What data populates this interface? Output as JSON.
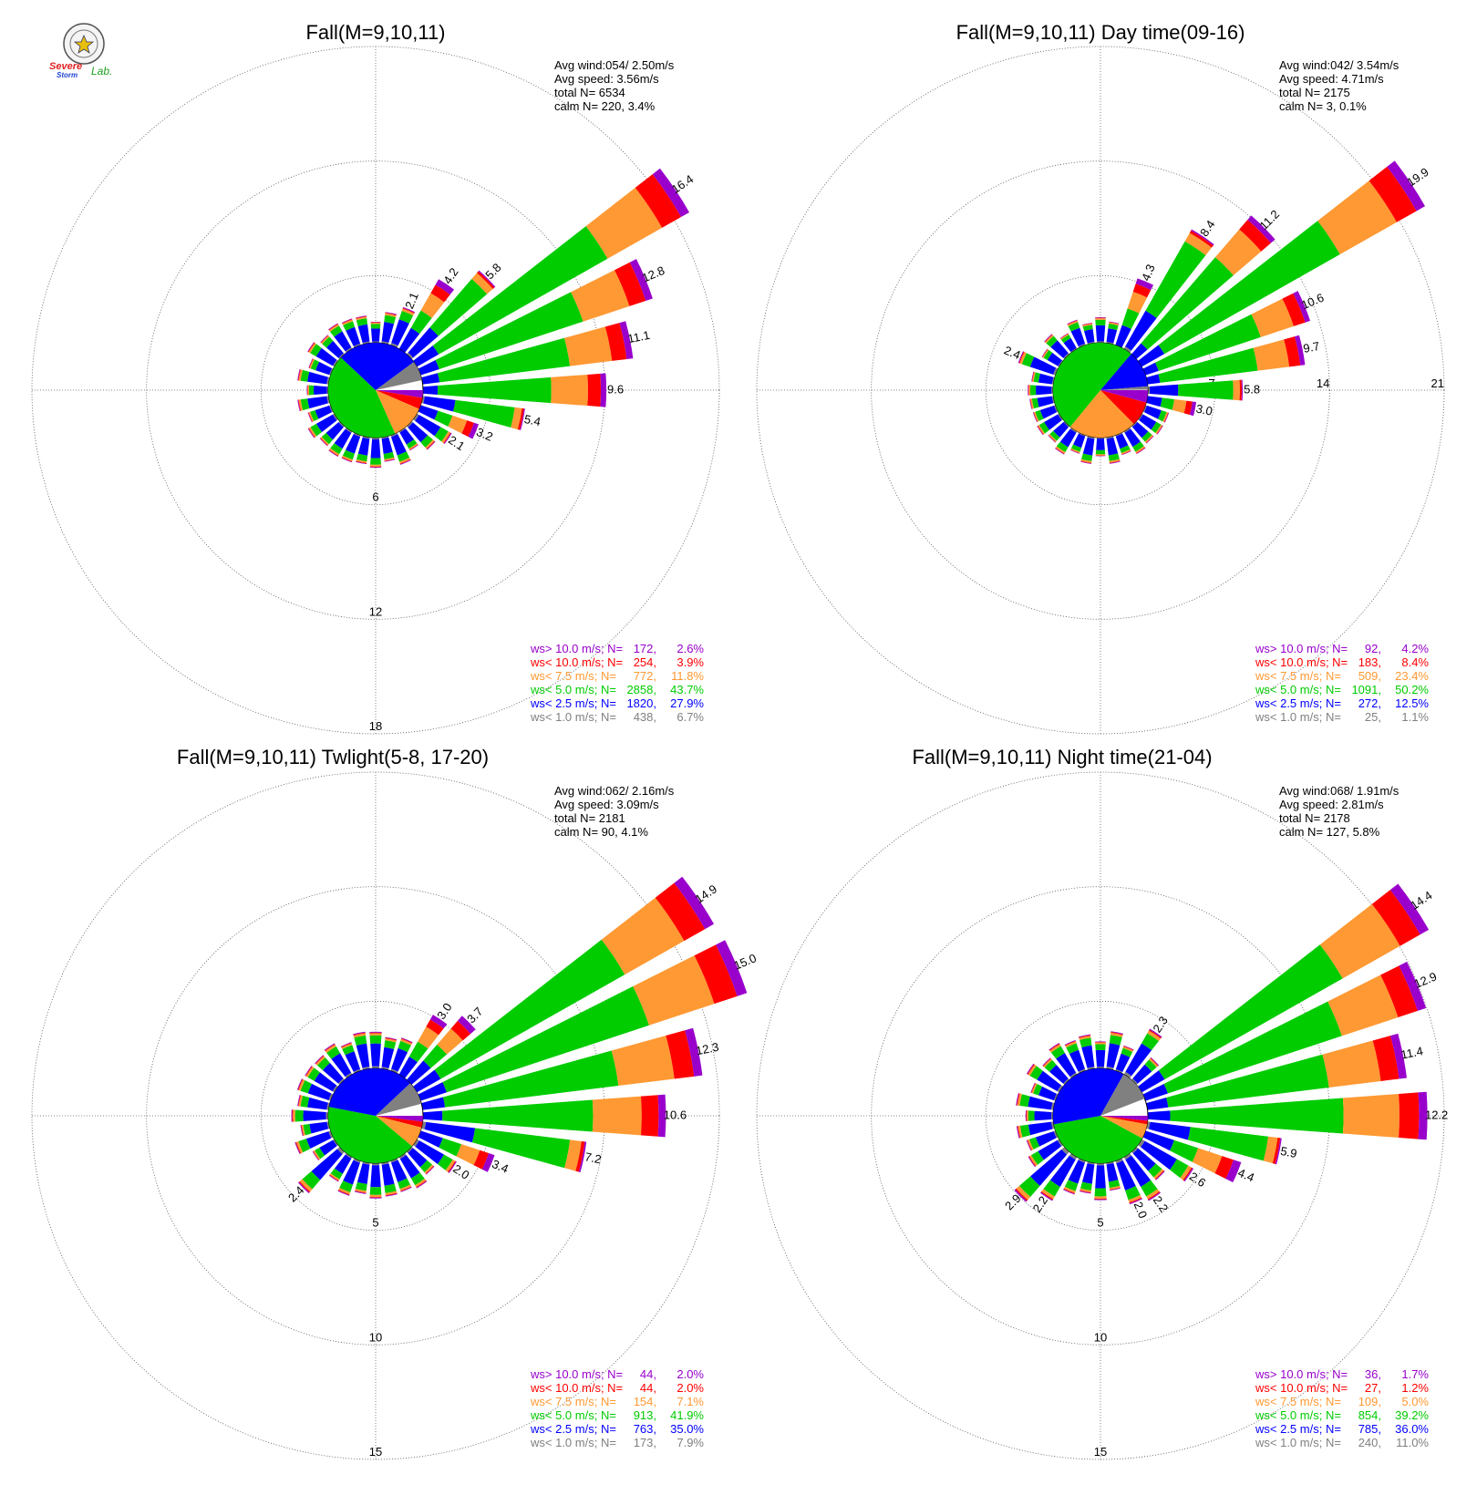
{
  "logo": {
    "text_top": "Severe",
    "text_bottom": "Storm",
    "text_lab": "Lab."
  },
  "colors": {
    "gt10": "#9900cc",
    "lt10": "#ff0000",
    "lt75": "#ff9933",
    "lt5": "#00cc00",
    "lt25": "#0000ff",
    "lt1": "#808080"
  },
  "chart_data": [
    {
      "type": "wind-rose",
      "title": "Fall(M=9,10,11)",
      "stats": [
        "Avg wind:054/ 2.50m/s",
        "Avg speed: 3.56m/s",
        "total N=      6534",
        "calm N=    220,   3.4%"
      ],
      "rings": [
        6,
        12,
        18
      ],
      "ring_labels_side": "south",
      "max_radius_value": 18,
      "labeled_petals": [
        {
          "dir": 22.5,
          "value": 2.1
        },
        {
          "dir": 33.75,
          "value": 4.2
        },
        {
          "dir": 45,
          "value": 5.8
        },
        {
          "dir": 56.25,
          "value": 16.4
        },
        {
          "dir": 67.5,
          "value": 12.8
        },
        {
          "dir": 78.75,
          "value": 11.1
        },
        {
          "dir": 90,
          "value": 9.6
        },
        {
          "dir": 101.25,
          "value": 5.4
        },
        {
          "dir": 112.5,
          "value": 3.2
        },
        {
          "dir": 123.75,
          "value": 2.1
        }
      ],
      "inner_pie": [
        2.6,
        3.9,
        11.8,
        43.7,
        27.9,
        6.7
      ],
      "legend": [
        {
          "label": "ws> 10.0 m/s; N=",
          "n": "172",
          "pct": "2.6%",
          "color": "gt10"
        },
        {
          "label": "ws< 10.0 m/s; N=",
          "n": "254",
          "pct": "3.9%",
          "color": "lt10"
        },
        {
          "label": "ws<  7.5 m/s; N=",
          "n": "772",
          "pct": "11.8%",
          "color": "lt75"
        },
        {
          "label": "ws<  5.0 m/s; N=",
          "n": "2858",
          "pct": "43.7%",
          "color": "lt5"
        },
        {
          "label": "ws<  2.5 m/s; N=",
          "n": "1820",
          "pct": "27.9%",
          "color": "lt25"
        },
        {
          "label": "ws<  1.0 m/s; N=",
          "n": "438",
          "pct": "6.7%",
          "color": "lt1"
        }
      ]
    },
    {
      "type": "wind-rose",
      "title": "Fall(M=9,10,11) Day time(09-16)",
      "stats": [
        "Avg wind:042/ 3.54m/s",
        "Avg speed: 4.71m/s",
        "total N=      2175",
        "calm N=      3,   0.1%"
      ],
      "rings": [
        7,
        14,
        21
      ],
      "ring_labels_side": "east",
      "max_radius_value": 21,
      "labeled_petals": [
        {
          "dir": 292.5,
          "value": 2.4
        },
        {
          "dir": 22.5,
          "value": 4.3
        },
        {
          "dir": 33.75,
          "value": 8.4
        },
        {
          "dir": 45,
          "value": 11.2
        },
        {
          "dir": 56.25,
          "value": 19.9
        },
        {
          "dir": 67.5,
          "value": 10.6
        },
        {
          "dir": 78.75,
          "value": 9.7
        },
        {
          "dir": 90,
          "value": 5.8
        },
        {
          "dir": 101.25,
          "value": 3.0
        }
      ],
      "inner_pie": [
        4.2,
        8.4,
        23.4,
        50.2,
        12.5,
        1.1
      ],
      "legend": [
        {
          "label": "ws> 10.0 m/s; N=",
          "n": "92",
          "pct": "4.2%",
          "color": "gt10"
        },
        {
          "label": "ws< 10.0 m/s; N=",
          "n": "183",
          "pct": "8.4%",
          "color": "lt10"
        },
        {
          "label": "ws<  7.5 m/s; N=",
          "n": "509",
          "pct": "23.4%",
          "color": "lt75"
        },
        {
          "label": "ws<  5.0 m/s; N=",
          "n": "1091",
          "pct": "50.2%",
          "color": "lt5"
        },
        {
          "label": "ws<  2.5 m/s; N=",
          "n": "272",
          "pct": "12.5%",
          "color": "lt25"
        },
        {
          "label": "ws<  1.0 m/s; N=",
          "n": "25",
          "pct": "1.1%",
          "color": "lt1"
        }
      ]
    },
    {
      "type": "wind-rose",
      "title": "Fall(M=9,10,11) Twlight(5-8, 17-20)",
      "stats": [
        "Avg wind:062/ 2.16m/s",
        "Avg speed: 3.09m/s",
        "total N=      2181",
        "calm N=     90,   4.1%"
      ],
      "rings": [
        5,
        10,
        15
      ],
      "ring_labels_side": "south",
      "max_radius_value": 15,
      "labeled_petals": [
        {
          "dir": 33.75,
          "value": 3.0
        },
        {
          "dir": 45,
          "value": 3.7
        },
        {
          "dir": 56.25,
          "value": 14.9
        },
        {
          "dir": 67.5,
          "value": 15.0
        },
        {
          "dir": 78.75,
          "value": 12.3
        },
        {
          "dir": 90,
          "value": 10.6
        },
        {
          "dir": 101.25,
          "value": 7.2
        },
        {
          "dir": 112.5,
          "value": 3.4
        },
        {
          "dir": 123.75,
          "value": 2.0
        },
        {
          "dir": 225,
          "value": 2.4
        }
      ],
      "inner_pie": [
        2.0,
        2.0,
        7.1,
        41.9,
        35.0,
        7.9
      ],
      "legend": [
        {
          "label": "ws> 10.0 m/s; N=",
          "n": "44",
          "pct": "2.0%",
          "color": "gt10"
        },
        {
          "label": "ws< 10.0 m/s; N=",
          "n": "44",
          "pct": "2.0%",
          "color": "lt10"
        },
        {
          "label": "ws<  7.5 m/s; N=",
          "n": "154",
          "pct": "7.1%",
          "color": "lt75"
        },
        {
          "label": "ws<  5.0 m/s; N=",
          "n": "913",
          "pct": "41.9%",
          "color": "lt5"
        },
        {
          "label": "ws<  2.5 m/s; N=",
          "n": "763",
          "pct": "35.0%",
          "color": "lt25"
        },
        {
          "label": "ws<  1.0 m/s; N=",
          "n": "173",
          "pct": "7.9%",
          "color": "lt1"
        }
      ]
    },
    {
      "type": "wind-rose",
      "title": "Fall(M=9,10,11) Night time(21-04)",
      "stats": [
        "Avg wind:068/ 1.91m/s",
        "Avg speed: 2.81m/s",
        "total N=      2178",
        "calm N=    127,   5.8%"
      ],
      "rings": [
        5,
        10,
        15
      ],
      "ring_labels_side": "south",
      "max_radius_value": 15,
      "labeled_petals": [
        {
          "dir": 33.75,
          "value": 2.3
        },
        {
          "dir": 56.25,
          "value": 14.4
        },
        {
          "dir": 67.5,
          "value": 12.9
        },
        {
          "dir": 78.75,
          "value": 11.4
        },
        {
          "dir": 90,
          "value": 12.2
        },
        {
          "dir": 101.25,
          "value": 5.9
        },
        {
          "dir": 112.5,
          "value": 4.4
        },
        {
          "dir": 123.75,
          "value": 2.6
        },
        {
          "dir": 146.25,
          "value": 2.2
        },
        {
          "dir": 157.5,
          "value": 2.0
        },
        {
          "dir": 213.75,
          "value": 2.2
        },
        {
          "dir": 225,
          "value": 2.9
        }
      ],
      "inner_pie": [
        1.7,
        1.2,
        5.0,
        39.2,
        36.0,
        11.0
      ],
      "legend": [
        {
          "label": "ws> 10.0 m/s; N=",
          "n": "36",
          "pct": "1.7%",
          "color": "gt10"
        },
        {
          "label": "ws< 10.0 m/s; N=",
          "n": "27",
          "pct": "1.2%",
          "color": "lt10"
        },
        {
          "label": "ws<  7.5 m/s; N=",
          "n": "109",
          "pct": "5.0%",
          "color": "lt75"
        },
        {
          "label": "ws<  5.0 m/s; N=",
          "n": "854",
          "pct": "39.2%",
          "color": "lt5"
        },
        {
          "label": "ws<  2.5 m/s; N=",
          "n": "785",
          "pct": "36.0%",
          "color": "lt25"
        },
        {
          "label": "ws<  1.0 m/s; N=",
          "n": "240",
          "pct": "11.0%",
          "color": "lt1"
        }
      ]
    }
  ]
}
